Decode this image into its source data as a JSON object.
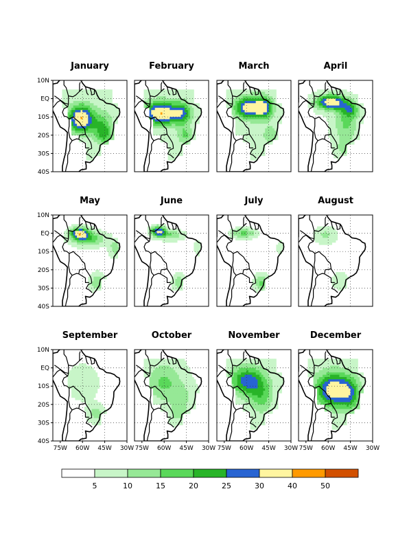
{
  "chart_data": {
    "type": "heatmap",
    "panels": [
      {
        "title": "January"
      },
      {
        "title": "February"
      },
      {
        "title": "March"
      },
      {
        "title": "April"
      },
      {
        "title": "May"
      },
      {
        "title": "June"
      },
      {
        "title": "July"
      },
      {
        "title": "August"
      },
      {
        "title": "September"
      },
      {
        "title": "October"
      },
      {
        "title": "November"
      },
      {
        "title": "December"
      }
    ],
    "lat_ticks": [
      "10N",
      "EQ",
      "10S",
      "20S",
      "30S",
      "40S"
    ],
    "lon_ticks": [
      "75W",
      "60W",
      "45W",
      "30W"
    ],
    "lat_range": [
      -40,
      10
    ],
    "lon_range": [
      -80,
      -30
    ],
    "colorbar": {
      "boundaries": [
        5,
        10,
        15,
        20,
        25,
        30,
        40,
        50
      ],
      "labels": [
        "5",
        "10",
        "15",
        "20",
        "25",
        "30",
        "40",
        "50"
      ],
      "colors": [
        "#ffffff",
        "#c8f5c8",
        "#96e896",
        "#5ad85a",
        "#28b428",
        "#2864d2",
        "#fff5a0",
        "#ff9a00",
        "#d25000"
      ]
    }
  }
}
